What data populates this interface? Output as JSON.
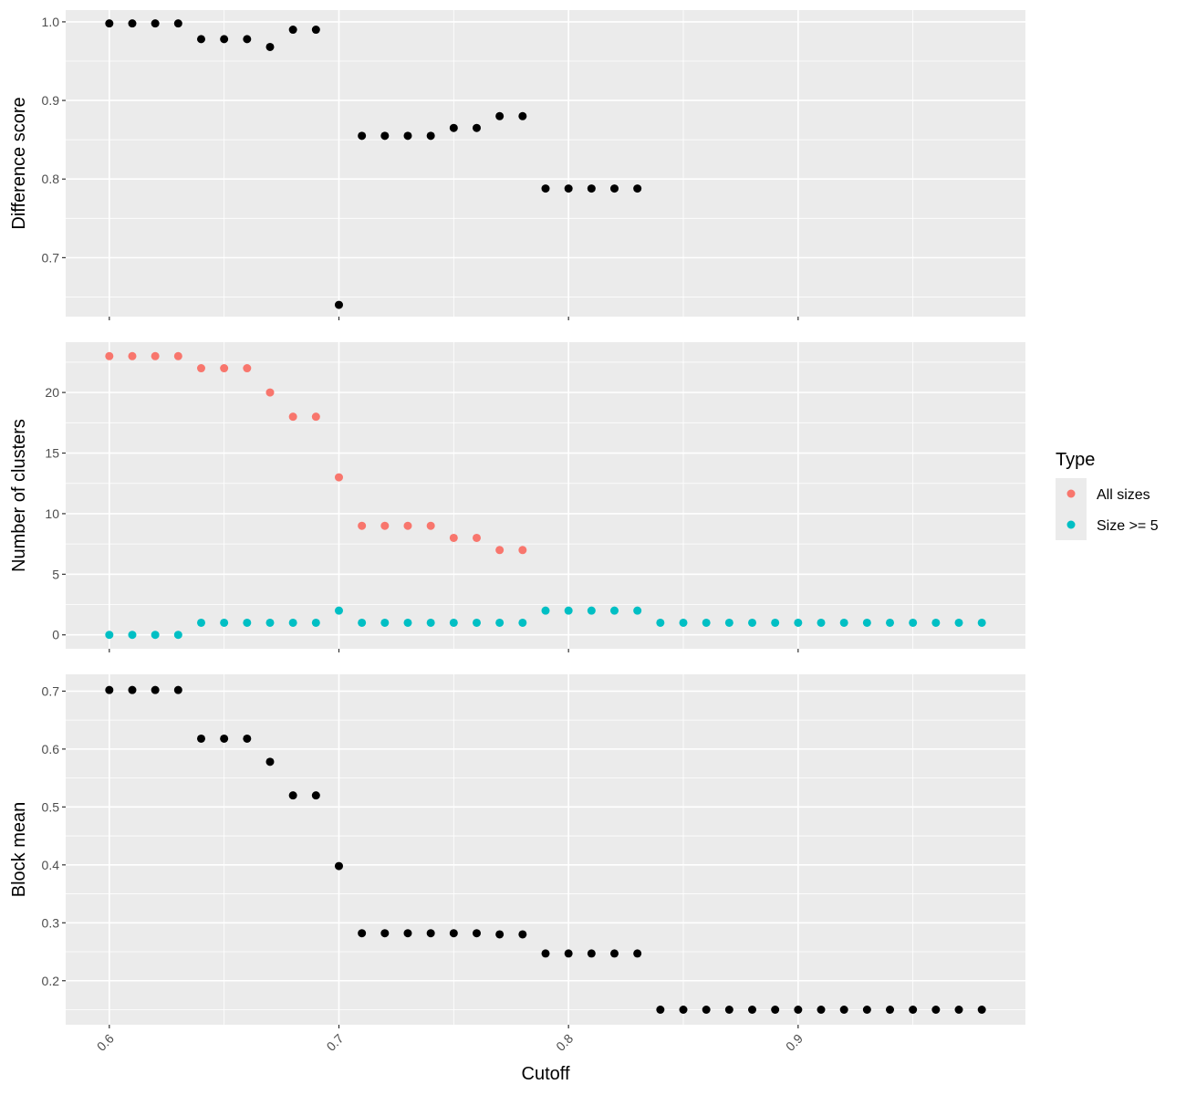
{
  "colors": {
    "panel_bg": "#EBEBEB",
    "grid": "#FFFFFF",
    "black_points": "#000000",
    "all_sizes": "#F8766D",
    "size_ge_5": "#00BFC4"
  },
  "chart_data": {
    "type": "scatter",
    "xlabel": "Cutoff",
    "x_ticks": [
      "0.6",
      "0.7",
      "0.8",
      "0.9"
    ],
    "xlim": [
      0.581,
      0.999
    ],
    "legend": {
      "title": "Type",
      "position": "right",
      "entries": [
        {
          "label": "All sizes",
          "color": "#F8766D"
        },
        {
          "label": "Size >= 5",
          "color": "#00BFC4"
        }
      ]
    },
    "panels": [
      {
        "ylabel": "Difference score",
        "ylim": [
          0.625,
          1.015
        ],
        "y_ticks": [
          "0.7",
          "0.8",
          "0.9",
          "1.0"
        ],
        "grid": true,
        "series": [
          {
            "color": "#000000",
            "x": [
              0.6,
              0.61,
              0.62,
              0.63,
              0.64,
              0.65,
              0.66,
              0.67,
              0.68,
              0.69,
              0.7,
              0.71,
              0.72,
              0.73,
              0.74,
              0.75,
              0.76,
              0.77,
              0.78,
              0.79,
              0.8,
              0.81,
              0.82,
              0.83
            ],
            "y": [
              0.998,
              0.998,
              0.998,
              0.998,
              0.978,
              0.978,
              0.978,
              0.968,
              0.99,
              0.99,
              0.64,
              0.855,
              0.855,
              0.855,
              0.855,
              0.865,
              0.865,
              0.88,
              0.88,
              0.788,
              0.788,
              0.788,
              0.788,
              0.788
            ]
          }
        ]
      },
      {
        "ylabel": "Number of clusters",
        "ylim": [
          -1.15,
          24.15
        ],
        "y_ticks": [
          "0",
          "5",
          "10",
          "15",
          "20"
        ],
        "grid": true,
        "series": [
          {
            "name": "All sizes",
            "color": "#F8766D",
            "x": [
              0.6,
              0.61,
              0.62,
              0.63,
              0.64,
              0.65,
              0.66,
              0.67,
              0.68,
              0.69,
              0.7,
              0.71,
              0.72,
              0.73,
              0.74,
              0.75,
              0.76,
              0.77,
              0.78
            ],
            "y": [
              23,
              23,
              23,
              23,
              22,
              22,
              22,
              20,
              18,
              18,
              13,
              9,
              9,
              9,
              9,
              8,
              8,
              7,
              7
            ]
          },
          {
            "name": "Size >= 5",
            "color": "#00BFC4",
            "x": [
              0.6,
              0.61,
              0.62,
              0.63,
              0.64,
              0.65,
              0.66,
              0.67,
              0.68,
              0.69,
              0.7,
              0.71,
              0.72,
              0.73,
              0.74,
              0.75,
              0.76,
              0.77,
              0.78,
              0.79,
              0.8,
              0.81,
              0.82,
              0.83,
              0.84,
              0.85,
              0.86,
              0.87,
              0.88,
              0.89,
              0.9,
              0.91,
              0.92,
              0.93,
              0.94,
              0.95,
              0.96,
              0.97,
              0.98
            ],
            "y": [
              0,
              0,
              0,
              0,
              1,
              1,
              1,
              1,
              1,
              1,
              2,
              1,
              1,
              1,
              1,
              1,
              1,
              1,
              1,
              2,
              2,
              2,
              2,
              2,
              1,
              1,
              1,
              1,
              1,
              1,
              1,
              1,
              1,
              1,
              1,
              1,
              1,
              1,
              1
            ]
          }
        ]
      },
      {
        "ylabel": "Block mean",
        "ylim": [
          0.124,
          0.729
        ],
        "y_ticks": [
          "0.2",
          "0.3",
          "0.4",
          "0.5",
          "0.6",
          "0.7"
        ],
        "grid": true,
        "series": [
          {
            "color": "#000000",
            "x": [
              0.6,
              0.61,
              0.62,
              0.63,
              0.64,
              0.65,
              0.66,
              0.67,
              0.68,
              0.69,
              0.7,
              0.71,
              0.72,
              0.73,
              0.74,
              0.75,
              0.76,
              0.77,
              0.78,
              0.79,
              0.8,
              0.81,
              0.82,
              0.83,
              0.84,
              0.85,
              0.86,
              0.87,
              0.88,
              0.89,
              0.9,
              0.91,
              0.92,
              0.93,
              0.94,
              0.95,
              0.96,
              0.97,
              0.98
            ],
            "y": [
              0.702,
              0.702,
              0.702,
              0.702,
              0.618,
              0.618,
              0.618,
              0.578,
              0.52,
              0.52,
              0.398,
              0.282,
              0.282,
              0.282,
              0.282,
              0.282,
              0.282,
              0.28,
              0.28,
              0.247,
              0.247,
              0.247,
              0.247,
              0.247,
              0.15,
              0.15,
              0.15,
              0.15,
              0.15,
              0.15,
              0.15,
              0.15,
              0.15,
              0.15,
              0.15,
              0.15,
              0.15,
              0.15,
              0.15
            ]
          }
        ]
      }
    ]
  }
}
